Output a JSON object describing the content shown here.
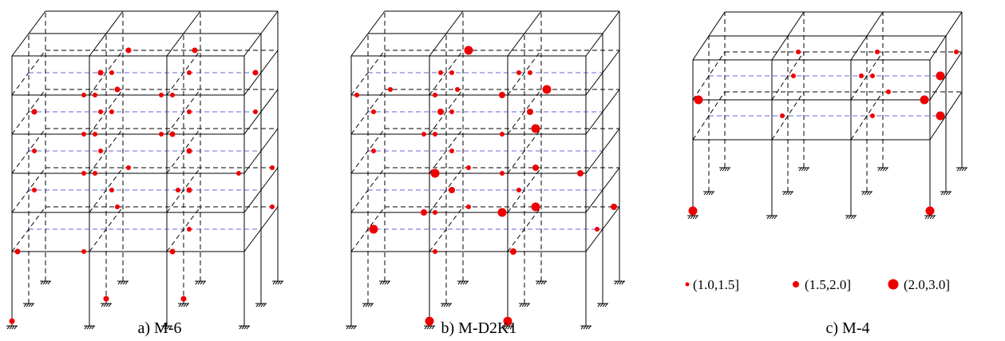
{
  "panels": [
    {
      "caption": "a) M-6"
    },
    {
      "caption": "b) M-D2K1"
    },
    {
      "caption": "c) M-4"
    }
  ],
  "legend": [
    {
      "label": "(1.0,1.5]"
    },
    {
      "label": "(1.5,2.0]"
    },
    {
      "label": "(2.0,3.0]"
    }
  ]
}
